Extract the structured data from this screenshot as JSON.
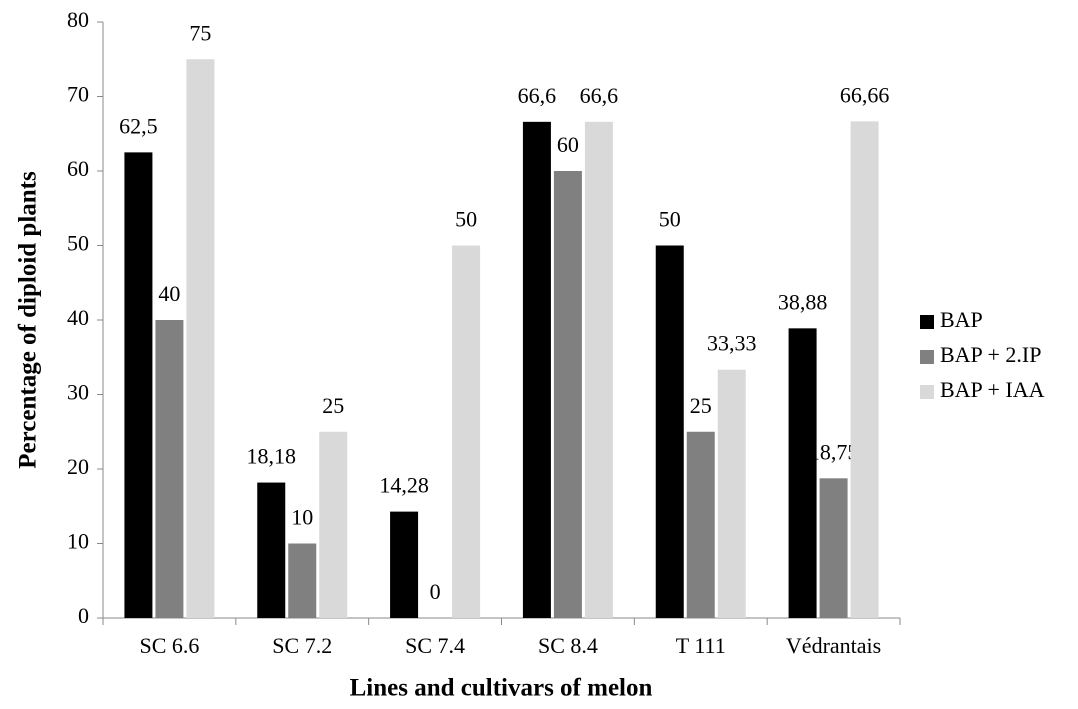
{
  "chart_data": {
    "type": "bar",
    "x_label": "Lines and cultivars of melon",
    "y_label": "Percentage of diploid plants",
    "categories": [
      "SC 6.6",
      "SC 7.2",
      "SC 7.4",
      "SC 8.4",
      "T 111",
      "Védrantais"
    ],
    "series": [
      {
        "name": "BAP",
        "color": "#000000",
        "values": [
          62.5,
          18.18,
          14.28,
          66.6,
          50,
          38.88
        ],
        "value_labels": [
          "62,5",
          "18,18",
          "14,28",
          "66,6",
          "50",
          "38,88"
        ]
      },
      {
        "name": "BAP + 2.IP",
        "color": "#808080",
        "values": [
          40,
          10,
          0,
          60,
          25,
          18.75
        ],
        "value_labels": [
          "40",
          "10",
          "0",
          "60",
          "25",
          "18,75"
        ]
      },
      {
        "name": "BAP + IAA",
        "color": "#d9d9d9",
        "values": [
          75,
          25,
          50,
          66.6,
          33.33,
          66.66
        ],
        "value_labels": [
          "75",
          "25",
          "50",
          "66,6",
          "33,33",
          "66,66"
        ]
      }
    ],
    "ylim": [
      0,
      80
    ],
    "yticks": [
      0,
      10,
      20,
      30,
      40,
      50,
      60,
      70,
      80
    ],
    "grid": false,
    "legend": "right"
  }
}
